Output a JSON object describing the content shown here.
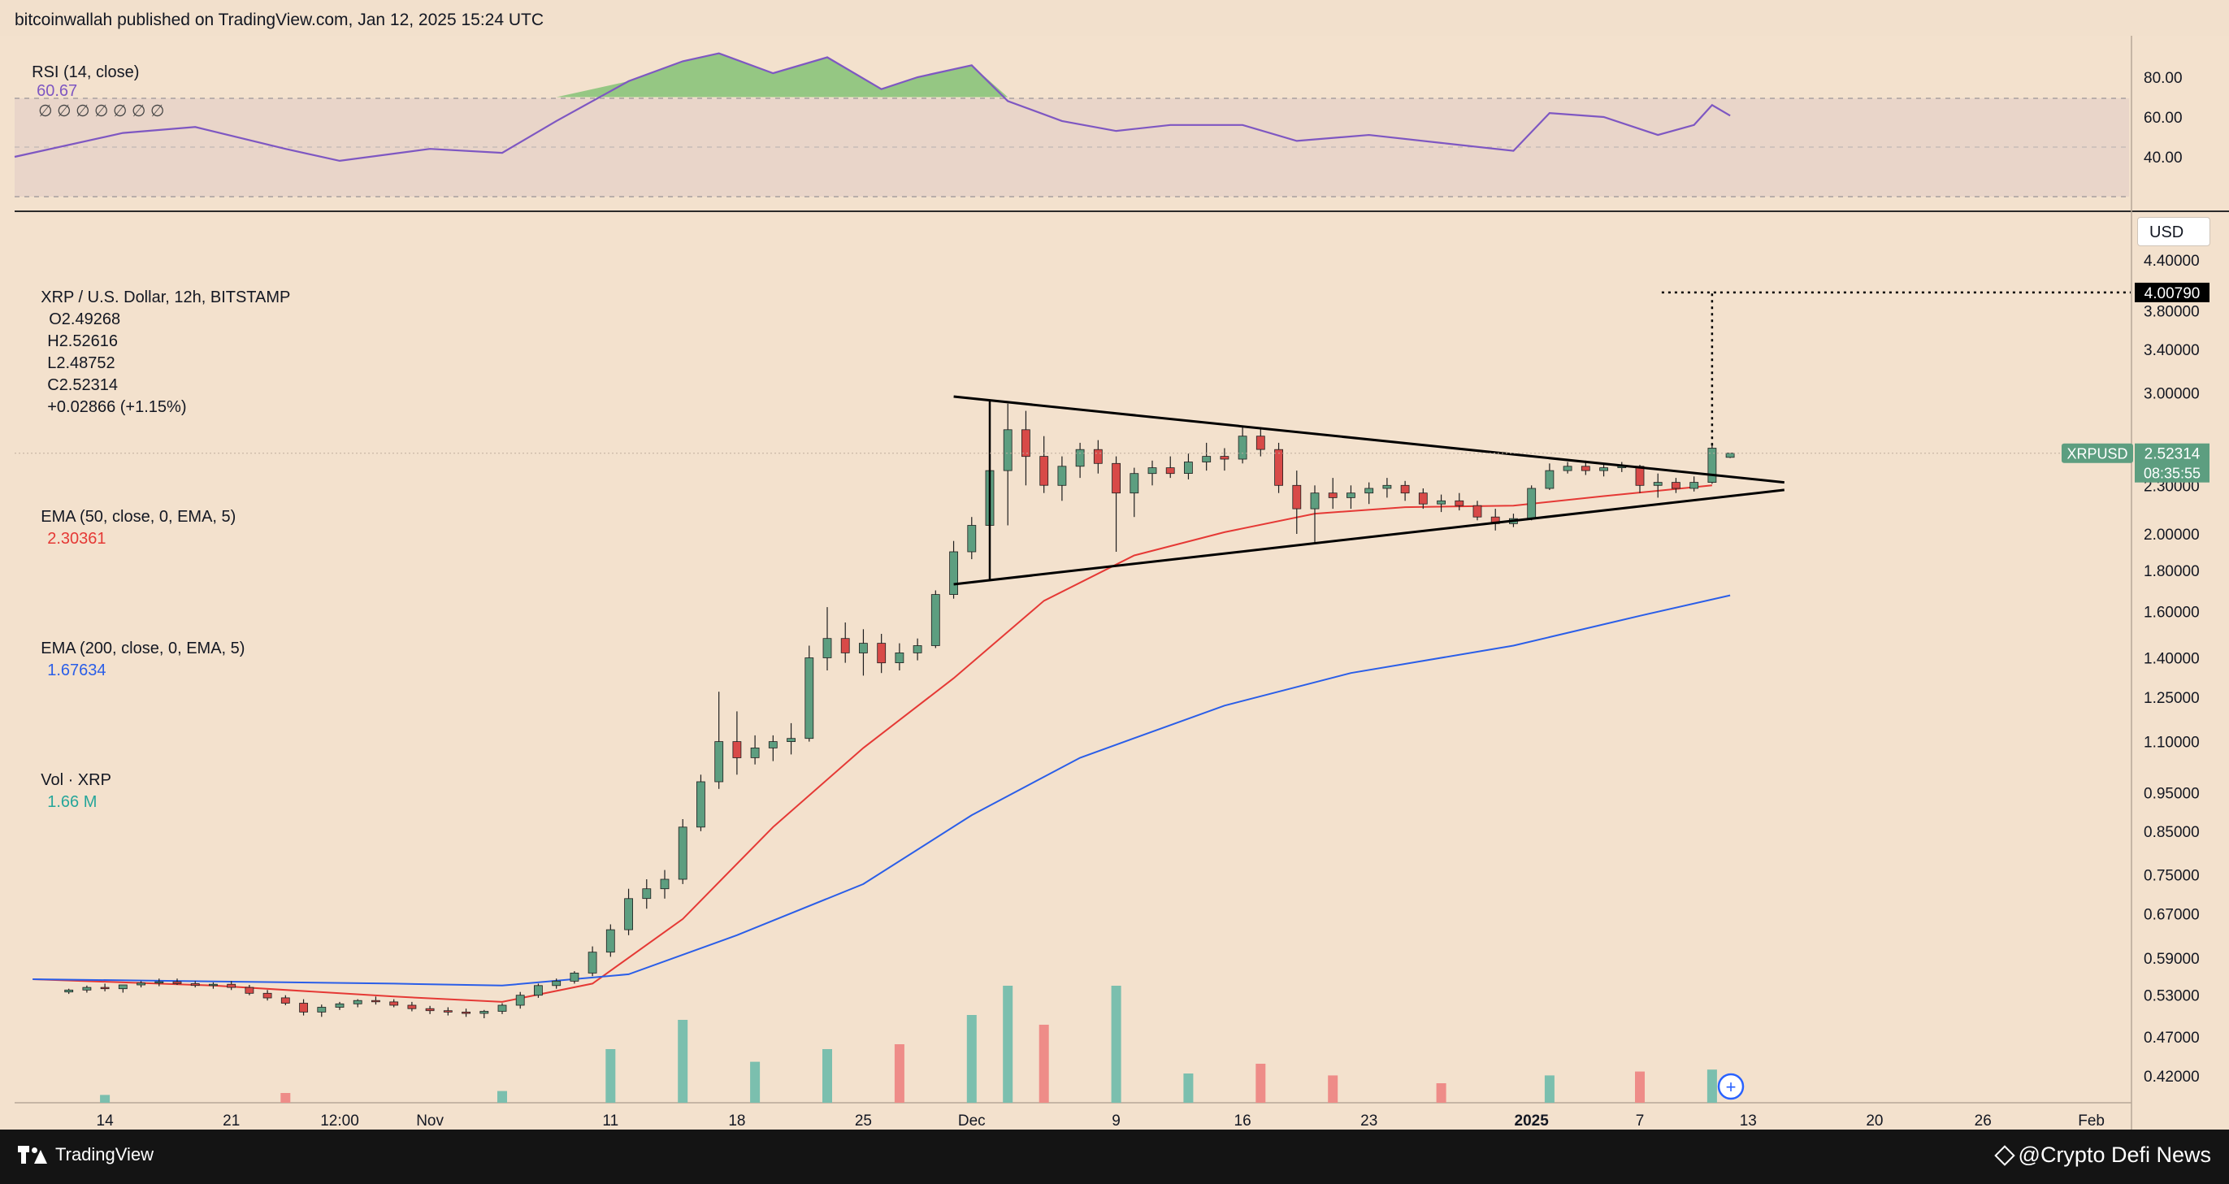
{
  "header": {
    "published_text": "bitcoinwallah published on TradingView.com, Jan 12, 2025 15:24 UTC"
  },
  "rsi": {
    "label": "RSI (14, close)",
    "value": "60.67",
    "dots": "∅ ∅ ∅ ∅ ∅ ∅ ∅",
    "ticks": [
      "80.00",
      "60.00",
      "40.00"
    ]
  },
  "legend": {
    "symbol": "XRP / U.S. Dollar, 12h, BITSTAMP",
    "o_label": "O",
    "open": "2.49268",
    "h_label": "H",
    "high": "2.52616",
    "l_label": "L",
    "low": "2.48752",
    "c_label": "C",
    "close": "2.52314",
    "change": "+0.02866 (+1.15%)",
    "ema50_label": "EMA (50, close, 0, EMA, 5)",
    "ema50_value": "2.30361",
    "ema200_label": "EMA (200, close, 0, EMA, 5)",
    "ema200_value": "1.67634",
    "vol_label": "Vol · XRP",
    "vol_value": "1.66 M"
  },
  "axis": {
    "currency": "USD",
    "price_ticks": [
      "4.40000",
      "3.80000",
      "3.40000",
      "3.00000",
      "2.30000",
      "2.00000",
      "1.80000",
      "1.60000",
      "1.40000",
      "1.25000",
      "1.10000",
      "0.95000",
      "0.85000",
      "0.75000",
      "0.67000",
      "0.59000",
      "0.53000",
      "0.47000",
      "0.42000"
    ],
    "target_label": "4.00790",
    "last_symbol": "XRPUSD",
    "last_price": "2.52314",
    "countdown": "08:35:55",
    "time_ticks": [
      "14",
      "21",
      "12:00",
      "Nov",
      "11",
      "18",
      "25",
      "Dec",
      "9",
      "16",
      "23",
      "2025",
      "7",
      "13",
      "20",
      "26",
      "Feb"
    ]
  },
  "footer": {
    "brand": "TradingView",
    "watermark": "@Crypto Defi News"
  },
  "colors": {
    "up": "#5d9e80",
    "down": "#d84a48",
    "ema50": "#e53935",
    "ema200": "#2a5ee8",
    "rsi": "#7e57c2",
    "vol_up": "#7bbfae",
    "vol_down": "#ee8c88",
    "bg": "#f3e1cd"
  },
  "chart_data": [
    {
      "type": "candlestick",
      "title": "XRP / U.S. Dollar, 12h, BITSTAMP",
      "y_scale": "log",
      "ylim": [
        0.4,
        4.6
      ],
      "x_range": [
        "2024-10-09",
        "2025-02-03"
      ],
      "candles_ohlc": [
        [
          "2024-10-12",
          0.535,
          0.54,
          0.532,
          0.538
        ],
        [
          "2024-10-13",
          0.538,
          0.545,
          0.534,
          0.542
        ],
        [
          "2024-10-14",
          0.542,
          0.548,
          0.536,
          0.54
        ],
        [
          "2024-10-15",
          0.54,
          0.544,
          0.534,
          0.546
        ],
        [
          "2024-10-16",
          0.546,
          0.552,
          0.542,
          0.549
        ],
        [
          "2024-10-17",
          0.549,
          0.556,
          0.544,
          0.551
        ],
        [
          "2024-10-18",
          0.551,
          0.556,
          0.546,
          0.548
        ],
        [
          "2024-10-19",
          0.548,
          0.552,
          0.542,
          0.545
        ],
        [
          "2024-10-20",
          0.545,
          0.55,
          0.54,
          0.547
        ],
        [
          "2024-10-21",
          0.547,
          0.552,
          0.538,
          0.542
        ],
        [
          "2024-10-22",
          0.542,
          0.546,
          0.53,
          0.533
        ],
        [
          "2024-10-23",
          0.533,
          0.538,
          0.522,
          0.526
        ],
        [
          "2024-10-24",
          0.526,
          0.53,
          0.515,
          0.518
        ],
        [
          "2024-10-25",
          0.518,
          0.524,
          0.5,
          0.505
        ],
        [
          "2024-10-26",
          0.505,
          0.516,
          0.498,
          0.512
        ],
        [
          "2024-10-27",
          0.512,
          0.52,
          0.508,
          0.517
        ],
        [
          "2024-10-28",
          0.517,
          0.524,
          0.512,
          0.522
        ],
        [
          "2024-10-29",
          0.522,
          0.528,
          0.516,
          0.52
        ],
        [
          "2024-10-30",
          0.52,
          0.524,
          0.512,
          0.515
        ],
        [
          "2024-10-31",
          0.515,
          0.52,
          0.506,
          0.51
        ],
        [
          "2024-11-01",
          0.51,
          0.514,
          0.502,
          0.507
        ],
        [
          "2024-11-02",
          0.507,
          0.512,
          0.5,
          0.505
        ],
        [
          "2024-11-03",
          0.505,
          0.51,
          0.498,
          0.503
        ],
        [
          "2024-11-04",
          0.503,
          0.508,
          0.496,
          0.506
        ],
        [
          "2024-11-05",
          0.506,
          0.518,
          0.502,
          0.515
        ],
        [
          "2024-11-06",
          0.515,
          0.535,
          0.51,
          0.53
        ],
        [
          "2024-11-07",
          0.53,
          0.548,
          0.526,
          0.545
        ],
        [
          "2024-11-08",
          0.545,
          0.556,
          0.54,
          0.552
        ],
        [
          "2024-11-09",
          0.552,
          0.568,
          0.548,
          0.565
        ],
        [
          "2024-11-10",
          0.565,
          0.61,
          0.56,
          0.6
        ],
        [
          "2024-11-11",
          0.6,
          0.65,
          0.592,
          0.64
        ],
        [
          "2024-11-12",
          0.64,
          0.72,
          0.63,
          0.7
        ],
        [
          "2024-11-13",
          0.7,
          0.74,
          0.68,
          0.72
        ],
        [
          "2024-11-14",
          0.72,
          0.76,
          0.7,
          0.74
        ],
        [
          "2024-11-15",
          0.74,
          0.88,
          0.73,
          0.86
        ],
        [
          "2024-11-16",
          0.86,
          1.0,
          0.85,
          0.98
        ],
        [
          "2024-11-17",
          0.98,
          1.27,
          0.96,
          1.1
        ],
        [
          "2024-11-18",
          1.1,
          1.2,
          1.0,
          1.05
        ],
        [
          "2024-11-19",
          1.05,
          1.12,
          1.03,
          1.08
        ],
        [
          "2024-11-20",
          1.08,
          1.12,
          1.04,
          1.1
        ],
        [
          "2024-11-21",
          1.1,
          1.16,
          1.06,
          1.11
        ],
        [
          "2024-11-22",
          1.11,
          1.45,
          1.1,
          1.4
        ],
        [
          "2024-11-23",
          1.4,
          1.62,
          1.35,
          1.48
        ],
        [
          "2024-11-24",
          1.48,
          1.55,
          1.38,
          1.42
        ],
        [
          "2024-11-25",
          1.42,
          1.52,
          1.33,
          1.46
        ],
        [
          "2024-11-26",
          1.46,
          1.5,
          1.34,
          1.38
        ],
        [
          "2024-11-27",
          1.38,
          1.46,
          1.35,
          1.42
        ],
        [
          "2024-11-28",
          1.42,
          1.48,
          1.39,
          1.45
        ],
        [
          "2024-11-29",
          1.45,
          1.7,
          1.44,
          1.68
        ],
        [
          "2024-11-30",
          1.68,
          1.96,
          1.66,
          1.9
        ],
        [
          "2024-12-01",
          1.9,
          2.1,
          1.86,
          2.05
        ],
        [
          "2024-12-02",
          2.05,
          2.6,
          1.9,
          2.4
        ],
        [
          "2024-12-03",
          2.4,
          2.91,
          2.05,
          2.7
        ],
        [
          "2024-12-04",
          2.7,
          2.85,
          2.3,
          2.5
        ],
        [
          "2024-12-05",
          2.5,
          2.65,
          2.25,
          2.3
        ],
        [
          "2024-12-06",
          2.3,
          2.5,
          2.2,
          2.43
        ],
        [
          "2024-12-07",
          2.43,
          2.6,
          2.35,
          2.55
        ],
        [
          "2024-12-08",
          2.55,
          2.62,
          2.38,
          2.45
        ],
        [
          "2024-12-09",
          2.45,
          2.5,
          1.9,
          2.25
        ],
        [
          "2024-12-10",
          2.25,
          2.42,
          2.1,
          2.38
        ],
        [
          "2024-12-11",
          2.38,
          2.47,
          2.3,
          2.42
        ],
        [
          "2024-12-12",
          2.42,
          2.5,
          2.35,
          2.38
        ],
        [
          "2024-12-13",
          2.38,
          2.52,
          2.34,
          2.46
        ],
        [
          "2024-12-14",
          2.46,
          2.6,
          2.4,
          2.5
        ],
        [
          "2024-12-15",
          2.5,
          2.56,
          2.4,
          2.48
        ],
        [
          "2024-12-16",
          2.48,
          2.73,
          2.45,
          2.65
        ],
        [
          "2024-12-17",
          2.65,
          2.72,
          2.5,
          2.55
        ],
        [
          "2024-12-18",
          2.55,
          2.6,
          2.25,
          2.3
        ],
        [
          "2024-12-19",
          2.3,
          2.4,
          2.0,
          2.15
        ],
        [
          "2024-12-20",
          2.15,
          2.3,
          1.95,
          2.25
        ],
        [
          "2024-12-21",
          2.25,
          2.35,
          2.15,
          2.22
        ],
        [
          "2024-12-22",
          2.22,
          2.3,
          2.15,
          2.25
        ],
        [
          "2024-12-23",
          2.25,
          2.32,
          2.18,
          2.28
        ],
        [
          "2024-12-24",
          2.28,
          2.35,
          2.22,
          2.3
        ],
        [
          "2024-12-25",
          2.3,
          2.33,
          2.2,
          2.25
        ],
        [
          "2024-12-26",
          2.25,
          2.28,
          2.15,
          2.18
        ],
        [
          "2024-12-27",
          2.18,
          2.24,
          2.13,
          2.2
        ],
        [
          "2024-12-28",
          2.2,
          2.25,
          2.14,
          2.17
        ],
        [
          "2024-12-29",
          2.17,
          2.2,
          2.08,
          2.1
        ],
        [
          "2024-12-30",
          2.1,
          2.15,
          2.02,
          2.06
        ],
        [
          "2024-12-31",
          2.06,
          2.12,
          2.04,
          2.09
        ],
        [
          "2025-01-01",
          2.09,
          2.3,
          2.08,
          2.28
        ],
        [
          "2025-01-02",
          2.28,
          2.45,
          2.27,
          2.4
        ],
        [
          "2025-01-03",
          2.4,
          2.46,
          2.38,
          2.43
        ],
        [
          "2025-01-04",
          2.43,
          2.47,
          2.37,
          2.4
        ],
        [
          "2025-01-05",
          2.4,
          2.45,
          2.36,
          2.42
        ],
        [
          "2025-01-06",
          2.42,
          2.46,
          2.39,
          2.43
        ],
        [
          "2025-01-07",
          2.43,
          2.44,
          2.25,
          2.3
        ],
        [
          "2025-01-08",
          2.3,
          2.38,
          2.22,
          2.32
        ],
        [
          "2025-01-09",
          2.32,
          2.35,
          2.25,
          2.28
        ],
        [
          "2025-01-10",
          2.28,
          2.36,
          2.26,
          2.32
        ],
        [
          "2025-01-11",
          2.32,
          2.6,
          2.31,
          2.56
        ],
        [
          "2025-01-12",
          2.493,
          2.526,
          2.488,
          2.523
        ]
      ],
      "ema50": [
        [
          "2024-10-10",
          0.555
        ],
        [
          "2024-10-20",
          0.545
        ],
        [
          "2024-10-30",
          0.528
        ],
        [
          "2024-11-05",
          0.52
        ],
        [
          "2024-11-10",
          0.548
        ],
        [
          "2024-11-15",
          0.66
        ],
        [
          "2024-11-20",
          0.86
        ],
        [
          "2024-11-25",
          1.08
        ],
        [
          "2024-11-30",
          1.32
        ],
        [
          "2024-12-05",
          1.65
        ],
        [
          "2024-12-10",
          1.88
        ],
        [
          "2024-12-15",
          2.01
        ],
        [
          "2024-12-20",
          2.12
        ],
        [
          "2024-12-25",
          2.16
        ],
        [
          "2024-12-31",
          2.17
        ],
        [
          "2025-01-05",
          2.23
        ],
        [
          "2025-01-11",
          2.3
        ]
      ],
      "ema200": [
        [
          "2024-10-10",
          0.555
        ],
        [
          "2024-10-30",
          0.548
        ],
        [
          "2024-11-05",
          0.545
        ],
        [
          "2024-11-12",
          0.563
        ],
        [
          "2024-11-18",
          0.63
        ],
        [
          "2024-11-25",
          0.73
        ],
        [
          "2024-12-01",
          0.89
        ],
        [
          "2024-12-07",
          1.05
        ],
        [
          "2024-12-15",
          1.22
        ],
        [
          "2024-12-22",
          1.34
        ],
        [
          "2024-12-31",
          1.45
        ],
        [
          "2025-01-07",
          1.58
        ],
        [
          "2025-01-12",
          1.676
        ]
      ],
      "annotations": {
        "triangle_upper": [
          [
            "2024-11-30",
            2.97
          ],
          [
            "2025-01-15",
            2.32
          ]
        ],
        "triangle_lower": [
          [
            "2024-11-30",
            1.73
          ],
          [
            "2025-01-15",
            2.27
          ]
        ],
        "pole": [
          [
            "2024-12-02",
            1.75
          ],
          [
            "2024-12-02",
            2.94
          ]
        ],
        "target": 4.0079
      }
    },
    {
      "type": "line",
      "title": "RSI (14, close)",
      "ylim": [
        20,
        100
      ],
      "levels": [
        70,
        50,
        30
      ],
      "x": [
        "2024-10-09",
        "2024-10-15",
        "2024-10-19",
        "2024-10-24",
        "2024-10-27",
        "2024-11-01",
        "2024-11-05",
        "2024-11-08",
        "2024-11-12",
        "2024-11-15",
        "2024-11-17",
        "2024-11-20",
        "2024-11-23",
        "2024-11-26",
        "2024-11-28",
        "2024-12-01",
        "2024-12-03",
        "2024-12-06",
        "2024-12-09",
        "2024-12-12",
        "2024-12-16",
        "2024-12-19",
        "2024-12-23",
        "2024-12-27",
        "2024-12-31",
        "2025-01-02",
        "2025-01-05",
        "2025-01-08",
        "2025-01-10",
        "2025-01-11",
        "2025-01-12"
      ],
      "y": [
        40,
        52,
        55,
        44,
        38,
        44,
        42,
        58,
        78,
        88,
        92,
        82,
        90,
        74,
        80,
        86,
        68,
        58,
        53,
        56,
        56,
        48,
        51,
        47,
        43,
        62,
        60,
        51,
        56,
        66,
        60.67
      ]
    },
    {
      "type": "bar",
      "title": "Vol · XRP",
      "x": [
        "2024-10-14",
        "2024-10-24",
        "2024-11-05",
        "2024-11-11",
        "2024-11-15",
        "2024-11-19",
        "2024-11-23",
        "2024-11-27",
        "2024-12-01",
        "2024-12-03",
        "2024-12-05",
        "2024-12-09",
        "2024-12-13",
        "2024-12-17",
        "2024-12-21",
        "2024-12-27",
        "2025-01-02",
        "2025-01-07",
        "2025-01-11"
      ],
      "values": [
        8,
        10,
        12,
        55,
        85,
        42,
        55,
        60,
        90,
        120,
        80,
        120,
        30,
        40,
        28,
        20,
        28,
        32,
        34
      ],
      "colors": [
        "up",
        "down",
        "up",
        "up",
        "up",
        "up",
        "up",
        "down",
        "up",
        "up",
        "down",
        "up",
        "up",
        "down",
        "down",
        "down",
        "up",
        "down",
        "up"
      ]
    }
  ]
}
